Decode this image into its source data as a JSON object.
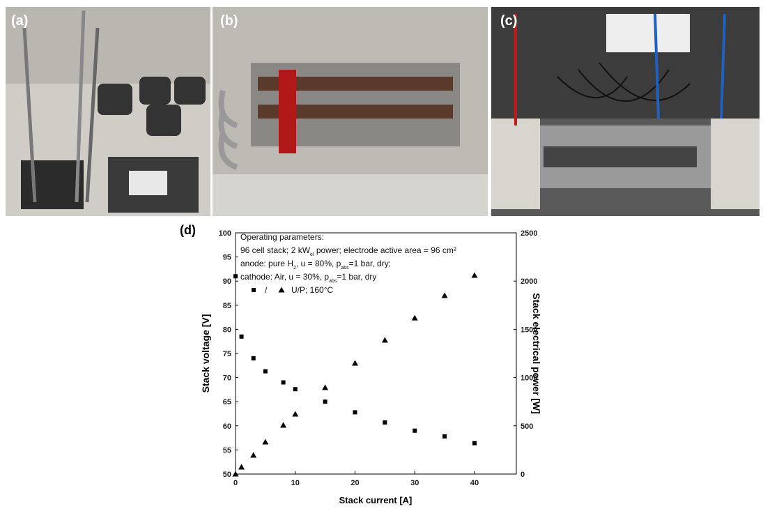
{
  "panels": [
    "(a)",
    "(b)",
    "(c)",
    "(d)"
  ],
  "chart_data": {
    "type": "scatter",
    "annotations": [
      [
        {
          "text": "Operating parameters:"
        }
      ],
      [
        {
          "text": "96 cell stack; 2 kW"
        },
        {
          "text": "el",
          "sub": true
        },
        {
          "text": " power; electrode active area = 96 cm²"
        }
      ],
      [
        {
          "text": "anode: pure H"
        },
        {
          "text": "2",
          "sub": true
        },
        {
          "text": ", u = 80%, p"
        },
        {
          "text": "abs",
          "sub": true
        },
        {
          "text": "=1 bar, dry;"
        }
      ],
      [
        {
          "text": "cathode: Air, u = 30%, p"
        },
        {
          "text": "abs",
          "sub": true
        },
        {
          "text": "=1 bar, dry"
        }
      ]
    ],
    "legend_text": [
      "/",
      "U/P; 160°C"
    ],
    "x_label": "Stack current [A]",
    "y_label": "Stack voltage [V]",
    "y2_label": "Stack electrical power [W]",
    "x": [
      0,
      1,
      3,
      5,
      8,
      10,
      15,
      20,
      25,
      30,
      35,
      40
    ],
    "series": [
      {
        "marker": "square",
        "color": "#000000",
        "values": [
          91,
          78.5,
          74,
          71.3,
          69,
          67.6,
          65,
          62.8,
          60.7,
          59,
          57.8,
          56.4
        ]
      },
      {
        "marker": "triangle",
        "color": "#000000",
        "axis": "y2",
        "values": [
          0,
          72,
          195,
          332,
          506,
          621,
          896,
          1149,
          1387,
          1618,
          1850,
          2059
        ]
      }
    ],
    "xlim": [
      0,
      47
    ],
    "xticks": [
      0,
      10,
      20,
      30,
      40
    ],
    "ylim": [
      50,
      100
    ],
    "yticks": [
      50,
      55,
      60,
      65,
      70,
      75,
      80,
      85,
      90,
      95,
      100
    ],
    "y2lim": [
      0,
      2500
    ],
    "y2ticks": [
      0,
      500,
      1000,
      1500,
      2000,
      2500
    ]
  }
}
